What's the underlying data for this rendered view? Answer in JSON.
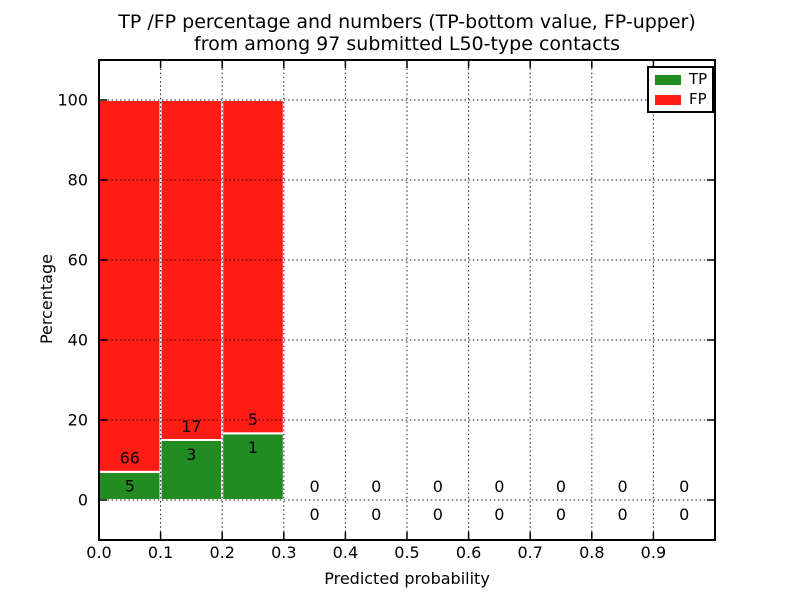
{
  "chart_data": {
    "type": "bar",
    "stacked": true,
    "title_line1": "TP /FP percentage and numbers (TP-bottom value, FP-upper)",
    "title_line2": "from among 97 submitted L50-type contacts",
    "xlabel": "Predicted probability",
    "ylabel": "Percentage",
    "xlim": [
      0.0,
      1.0
    ],
    "ylim": [
      -10,
      110
    ],
    "xticks": [
      "0.0",
      "0.1",
      "0.2",
      "0.3",
      "0.4",
      "0.5",
      "0.6",
      "0.7",
      "0.8",
      "0.9"
    ],
    "yticks": [
      0,
      20,
      40,
      60,
      80,
      100
    ],
    "grid": "dotted",
    "legend_position": "upper right",
    "bin_width": 0.1,
    "categories": [
      "0.0-0.1",
      "0.1-0.2",
      "0.2-0.3",
      "0.3-0.4",
      "0.4-0.5",
      "0.5-0.6",
      "0.6-0.7",
      "0.7-0.8",
      "0.8-0.9",
      "0.9-1.0"
    ],
    "series": [
      {
        "name": "TP",
        "color": "#228b22",
        "counts": [
          5,
          3,
          1,
          0,
          0,
          0,
          0,
          0,
          0,
          0
        ],
        "percent": [
          7.0,
          15.0,
          16.7,
          0,
          0,
          0,
          0,
          0,
          0,
          0
        ]
      },
      {
        "name": "FP",
        "color": "#ff1c15",
        "counts": [
          66,
          17,
          5,
          0,
          0,
          0,
          0,
          0,
          0,
          0
        ],
        "percent": [
          93.0,
          85.0,
          83.3,
          0,
          0,
          0,
          0,
          0,
          0,
          0
        ]
      }
    ],
    "bar_edge_color": "#ffffff",
    "spine_color": "#000000"
  }
}
